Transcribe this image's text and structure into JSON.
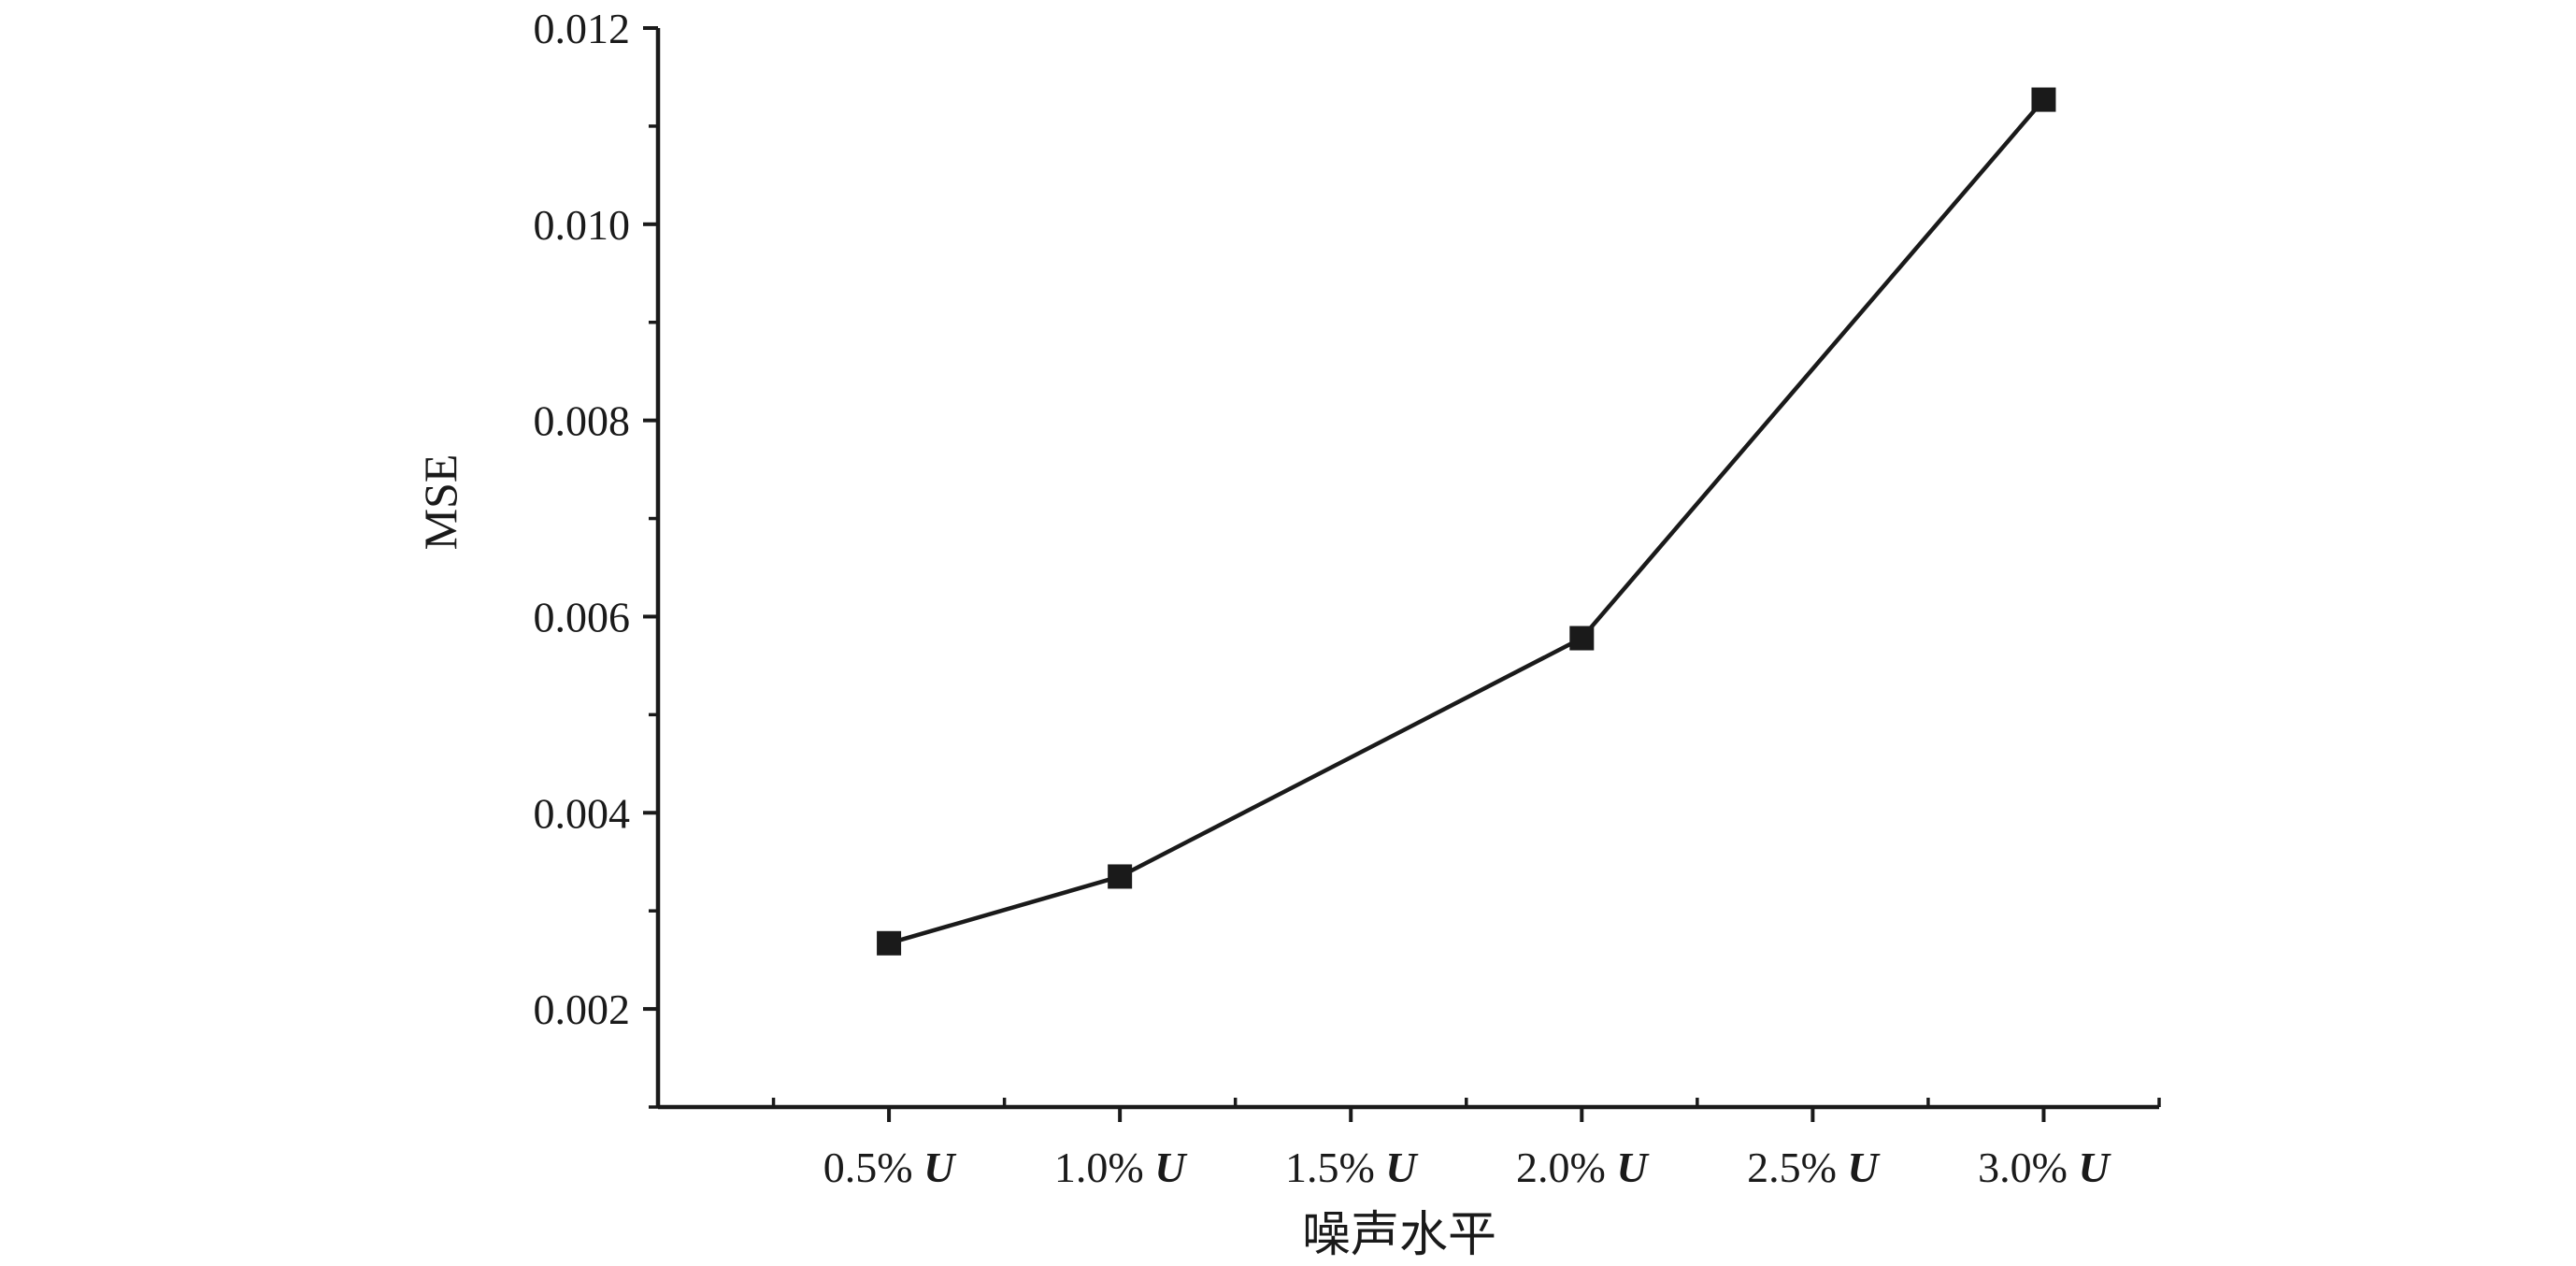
{
  "chart_data": {
    "type": "line",
    "xlabel": "噪声水平",
    "ylabel": "MSE",
    "x_ticks": [
      {
        "value": 0.5,
        "label": "0.5%",
        "unit": "U"
      },
      {
        "value": 1.0,
        "label": "1.0%",
        "unit": "U"
      },
      {
        "value": 1.5,
        "label": "1.5%",
        "unit": "U"
      },
      {
        "value": 2.0,
        "label": "2.0%",
        "unit": "U"
      },
      {
        "value": 2.5,
        "label": "2.5%",
        "unit": "U"
      },
      {
        "value": 3.0,
        "label": "3.0%",
        "unit": "U"
      }
    ],
    "y_ticks": [
      0.002,
      0.004,
      0.006,
      0.008,
      0.01,
      0.012
    ],
    "y_tick_labels": [
      "0.002",
      "0.004",
      "0.006",
      "0.008",
      "0.010",
      "0.012"
    ],
    "xlim": [
      0.0,
      3.25
    ],
    "ylim": [
      0.001,
      0.012
    ],
    "series": [
      {
        "x": [
          0.5,
          1.0,
          2.0,
          3.0
        ],
        "values": [
          0.00267,
          0.00335,
          0.00578,
          0.01127
        ],
        "marker": "square",
        "color": "#1a1a1a"
      }
    ],
    "grid": false,
    "legend": "none"
  }
}
